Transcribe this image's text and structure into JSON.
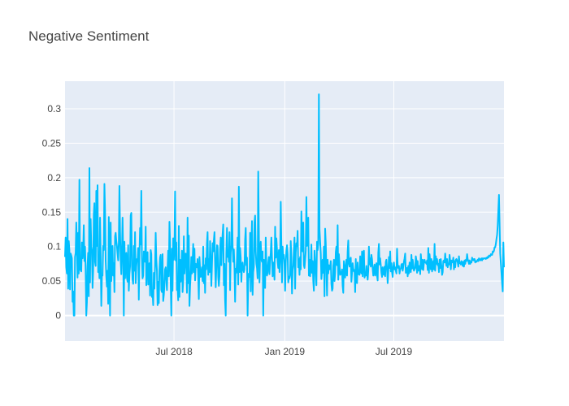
{
  "chart_data": {
    "type": "line",
    "title": "Negative Sentiment",
    "xlabel": "",
    "ylabel": "",
    "x_start": "2018-01-01",
    "x_end": "2019-12-31",
    "x_range": [
      "2018-01-01",
      "2019-12-31"
    ],
    "ylim": [
      -0.037,
      0.34
    ],
    "grid": true,
    "legend": "none",
    "x_ticks": [
      {
        "label": "Jul 2018",
        "date": "2018-07-01"
      },
      {
        "label": "Jan 2019",
        "date": "2019-01-01"
      },
      {
        "label": "Jul 2019",
        "date": "2019-07-01"
      }
    ],
    "y_ticks": [
      {
        "label": "0",
        "value": 0
      },
      {
        "label": "0.05",
        "value": 0.05
      },
      {
        "label": "0.1",
        "value": 0.1
      },
      {
        "label": "0.15",
        "value": 0.15
      },
      {
        "label": "0.2",
        "value": 0.2
      },
      {
        "label": "0.25",
        "value": 0.25
      },
      {
        "label": "0.3",
        "value": 0.3
      }
    ],
    "series": [
      {
        "color": "#00bfff",
        "values": [
          0.085,
          0.113,
          0.07,
          0.061,
          0.14,
          0.039,
          0.108,
          0.095,
          0.038,
          0.09,
          0.087,
          0.083,
          0.02,
          0.035,
          0.0,
          0.0,
          0.085,
          0.091,
          0.135,
          0.098,
          0.055,
          0.12,
          0.061,
          0.197,
          0.067,
          0.066,
          0.064,
          0.106,
          0.083,
          0.094,
          0.131,
          0.079,
          0.1,
          0.065,
          0.0,
          0.019,
          0.072,
          0.091,
          0.028,
          0.214,
          0.048,
          0.14,
          0.1,
          0.094,
          0.04,
          0.065,
          0.147,
          0.163,
          0.078,
          0.072,
          0.181,
          0.101,
          0.189,
          0.063,
          0.084,
          0.054,
          0.142,
          0.087,
          0.014,
          0.057,
          0.058,
          0.101,
          0.095,
          0.191,
          0.152,
          0.08,
          0.057,
          0.042,
          0.065,
          0.017,
          0.143,
          0.062,
          0.0,
          0.135,
          0.05,
          0.073,
          0.101,
          0.058,
          0.076,
          0.034,
          0.115,
          0.12,
          0.108,
          0.101,
          0.09,
          0.08,
          0.106,
          0.188,
          0.123,
          0.081,
          0.06,
          0.093,
          0.142,
          0.09,
          0.0,
          0.107,
          0.054,
          0.081,
          0.091,
          0.055,
          0.049,
          0.102,
          0.036,
          0.06,
          0.071,
          0.145,
          0.149,
          0.073,
          0.052,
          0.046,
          0.101,
          0.065,
          0.121,
          0.047,
          0.071,
          0.082,
          0.079,
          0.098,
          0.023,
          0.088,
          0.127,
          0.103,
          0.181,
          0.082,
          0.054,
          0.058,
          0.093,
          0.082,
          0.078,
          0.129,
          0.044,
          0.09,
          0.092,
          0.045,
          0.064,
          0.076,
          0.029,
          0.095,
          0.089,
          0.027,
          0.033,
          0.015,
          0.062,
          0.039,
          0.073,
          0.12,
          0.081,
          0.065,
          0.015,
          0.049,
          0.018,
          0.066,
          0.084,
          0.088,
          0.037,
          0.034,
          0.089,
          0.021,
          0.03,
          0.044,
          0.067,
          0.07,
          0.052,
          0.037,
          0.069,
          0.094,
          0.057,
          0.136,
          0.106,
          0.047,
          0.0,
          0.097,
          0.036,
          0.112,
          0.081,
          0.098,
          0.18,
          0.08,
          0.106,
          0.037,
          0.041,
          0.022,
          0.13,
          0.027,
          0.081,
          0.049,
          0.062,
          0.094,
          0.034,
          0.05,
          0.115,
          0.061,
          0.079,
          0.09,
          0.073,
          0.033,
          0.142,
          0.047,
          0.116,
          0.014,
          0.043,
          0.058,
          0.085,
          0.061,
          0.079,
          0.104,
          0.063,
          0.097,
          0.051,
          0.075,
          0.071,
          0.07,
          0.082,
          0.058,
          0.024,
          0.085,
          0.068,
          0.056,
          0.06,
          0.07,
          0.05,
          0.1,
          0.047,
          0.073,
          0.033,
          0.083,
          0.067,
          0.105,
          0.121,
          0.059,
          0.082,
          0.063,
          0.108,
          0.081,
          0.043,
          0.073,
          0.105,
          0.093,
          0.109,
          0.121,
          0.074,
          0.041,
          0.07,
          0.102,
          0.101,
          0.056,
          0.043,
          0.057,
          0.097,
          0.113,
          0.073,
          0.102,
          0.118,
          0.132,
          0.044,
          0.075,
          0.022,
          0.0,
          0.09,
          0.127,
          0.085,
          0.094,
          0.078,
          0.121,
          0.037,
          0.091,
          0.102,
          0.17,
          0.103,
          0.078,
          0.096,
          0.068,
          0.02,
          0.068,
          0.062,
          0.081,
          0.113,
          0.045,
          0.187,
          0.063,
          0.098,
          0.084,
          0.049,
          0.071,
          0.077,
          0.067,
          0.063,
          0.067,
          0.11,
          0.127,
          0.073,
          0.084,
          0.0,
          0.047,
          0.061,
          0.056,
          0.12,
          0.035,
          0.102,
          0.137,
          0.03,
          0.063,
          0.07,
          0.135,
          0.145,
          0.093,
          0.075,
          0.069,
          0.054,
          0.209,
          0.122,
          0.048,
          0.09,
          0.107,
          0.082,
          0.078,
          0.093,
          0.0,
          0.081,
          0.068,
          0.04,
          0.113,
          0.075,
          0.058,
          0.062,
          0.077,
          0.085,
          0.06,
          0.079,
          0.091,
          0.113,
          0.084,
          0.057,
          0.077,
          0.07,
          0.052,
          0.129,
          0.084,
          0.112,
          0.096,
          0.078,
          0.069,
          0.095,
          0.063,
          0.081,
          0.165,
          0.102,
          0.048,
          0.1,
          0.083,
          0.088,
          0.074,
          0.036,
          0.077,
          0.094,
          0.102,
          0.089,
          0.048,
          0.056,
          0.054,
          0.059,
          0.108,
          0.084,
          0.032,
          0.066,
          0.072,
          0.095,
          0.113,
          0.039,
          0.092,
          0.105,
          0.101,
          0.123,
          0.07,
          0.082,
          0.059,
          0.085,
          0.067,
          0.151,
          0.109,
          0.093,
          0.135,
          0.073,
          0.069,
          0.081,
          0.094,
          0.172,
          0.101,
          0.104,
          0.142,
          0.058,
          0.081,
          0.057,
          0.072,
          0.103,
          0.062,
          0.079,
          0.05,
          0.036,
          0.094,
          0.078,
          0.062,
          0.044,
          0.107,
          0.095,
          0.104,
          0.321,
          0.125,
          0.107,
          0.09,
          0.053,
          0.064,
          0.081,
          0.062,
          0.1,
          0.028,
          0.126,
          0.105,
          0.068,
          0.029,
          0.081,
          0.061,
          0.073,
          0.067,
          0.069,
          0.079,
          0.046,
          0.036,
          0.039,
          0.072,
          0.081,
          0.05,
          0.062,
          0.092,
          0.1,
          0.073,
          0.131,
          0.052,
          0.089,
          0.074,
          0.059,
          0.06,
          0.062,
          0.067,
          0.043,
          0.033,
          0.079,
          0.069,
          0.055,
          0.071,
          0.081,
          0.058,
          0.093,
          0.109,
          0.075,
          0.071,
          0.082,
          0.084,
          0.049,
          0.062,
          0.076,
          0.068,
          0.064,
          0.066,
          0.034,
          0.082,
          0.049,
          0.047,
          0.077,
          0.06,
          0.061,
          0.059,
          0.086,
          0.065,
          0.061,
          0.093,
          0.057,
          0.087,
          0.094,
          0.055,
          0.059,
          0.058,
          0.072,
          0.062,
          0.052,
          0.065,
          0.1,
          0.074,
          0.083,
          0.071,
          0.088,
          0.082,
          0.068,
          0.058,
          0.067,
          0.074,
          0.058,
          0.064,
          0.076,
          0.058,
          0.051,
          0.091,
          0.104,
          0.074,
          0.083,
          0.073,
          0.062,
          0.056,
          0.07,
          0.062,
          0.059,
          0.071,
          0.057,
          0.078,
          0.081,
          0.068,
          0.047,
          0.063,
          0.085,
          0.069,
          0.093,
          0.064,
          0.076,
          0.063,
          0.056,
          0.07,
          0.077,
          0.067,
          0.07,
          0.065,
          0.061,
          0.097,
          0.073,
          0.069,
          0.072,
          0.061,
          0.067,
          0.068,
          0.074,
          0.075,
          0.065,
          0.071,
          0.078,
          0.083,
          0.09,
          0.062,
          0.068,
          0.069,
          0.057,
          0.072,
          0.061,
          0.077,
          0.073,
          0.063,
          0.088,
          0.068,
          0.081,
          0.074,
          0.065,
          0.067,
          0.069,
          0.086,
          0.08,
          0.062,
          0.079,
          0.065,
          0.072,
          0.071,
          0.06,
          0.089,
          0.077,
          0.067,
          0.081,
          0.066,
          0.077,
          0.081,
          0.077,
          0.077,
          0.075,
          0.08,
          0.066,
          0.098,
          0.062,
          0.089,
          0.078,
          0.067,
          0.082,
          0.064,
          0.068,
          0.079,
          0.067,
          0.104,
          0.065,
          0.086,
          0.075,
          0.082,
          0.073,
          0.075,
          0.063,
          0.081,
          0.069,
          0.082,
          0.071,
          0.059,
          0.063,
          0.079,
          0.08,
          0.077,
          0.09,
          0.078,
          0.072,
          0.082,
          0.07,
          0.075,
          0.074,
          0.088,
          0.079,
          0.067,
          0.08,
          0.077,
          0.078,
          0.084,
          0.067,
          0.079,
          0.07,
          0.081,
          0.082,
          0.08,
          0.077,
          0.071,
          0.086,
          0.076,
          0.077,
          0.074,
          0.079,
          0.077,
          0.072,
          0.078,
          0.071,
          0.08,
          0.075,
          0.081,
          0.079,
          0.089,
          0.082,
          0.079,
          0.075,
          0.08,
          0.075,
          0.078,
          0.077,
          0.084,
          0.081,
          0.08,
          0.082,
          0.082,
          0.077,
          0.079,
          0.078,
          0.079,
          0.081,
          0.079,
          0.083,
          0.082,
          0.08,
          0.081,
          0.083,
          0.08,
          0.083,
          0.082,
          0.083,
          0.083,
          0.083,
          0.082,
          0.084,
          0.083,
          0.085,
          0.084,
          0.087,
          0.086,
          0.086,
          0.089,
          0.088,
          0.088,
          0.093,
          0.092,
          0.094,
          0.099,
          0.099,
          0.104,
          0.111,
          0.117,
          0.131,
          0.153,
          0.175,
          0.132,
          0.09,
          0.076,
          0.062,
          0.047,
          0.035,
          0.106,
          0.07
        ]
      }
    ]
  }
}
